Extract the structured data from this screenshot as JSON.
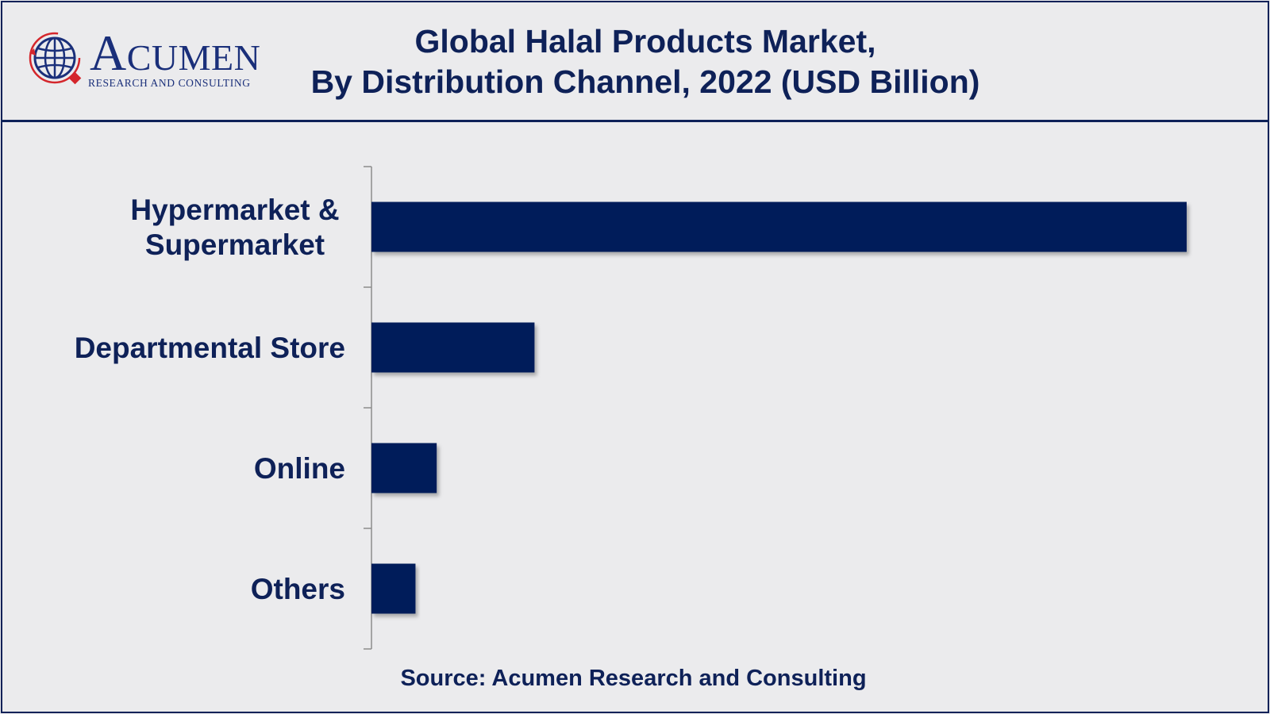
{
  "logo": {
    "word_first": "A",
    "word_rest": "CUMEN",
    "subtitle": "RESEARCH AND CONSULTING",
    "brand_color": "#1a2f7a",
    "accent_color": "#d4262c"
  },
  "title_line1": "Global Halal Products Market,",
  "title_line2": "By Distribution Channel, 2022 (USD Billion)",
  "source": "Source: Acumen Research and Consulting",
  "colors": {
    "bar": "#001c5a",
    "text": "#0e2158",
    "axis": "#8c8c8c"
  },
  "chart_data": {
    "type": "bar",
    "orientation": "horizontal",
    "categories": [
      "Hypermarket & Supermarket",
      "Departmental Store",
      "Online",
      "Others"
    ],
    "category_lines": [
      [
        "Hypermarket &",
        "Supermarket"
      ],
      [
        "Departmental Store"
      ],
      [
        "Online"
      ],
      [
        "Others"
      ]
    ],
    "values": [
      1000,
      200,
      80,
      54
    ],
    "xlim": [
      0,
      1000
    ],
    "grid": false,
    "legend": "none"
  }
}
